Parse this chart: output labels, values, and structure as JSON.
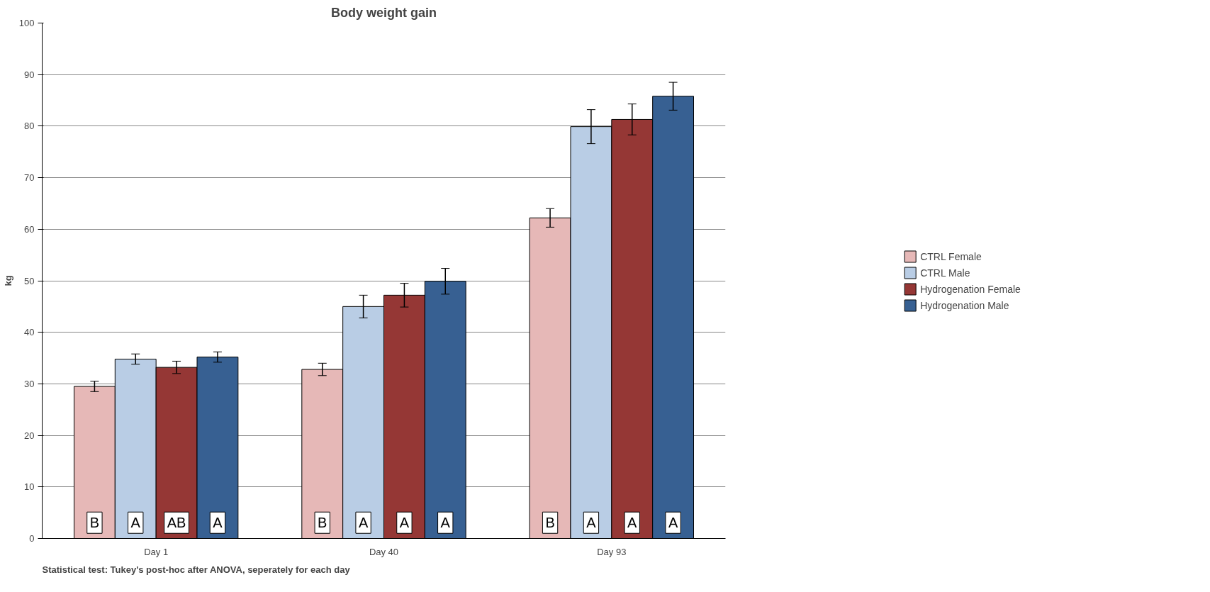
{
  "chart_data": {
    "type": "bar",
    "title": "Body weight gain",
    "ylabel": "kg",
    "categories": [
      "Day 1",
      "Day 40",
      "Day 93"
    ],
    "series": [
      {
        "name": "CTRL Female",
        "color": "#e6b8b7",
        "values": [
          29.5,
          32.8,
          62.2
        ],
        "errors": [
          1,
          1.2,
          1.8
        ],
        "value_labels": [
          "B",
          "B",
          "B"
        ]
      },
      {
        "name": "CTRL Male",
        "color": "#b9cde5",
        "values": [
          34.8,
          45,
          79.9
        ],
        "errors": [
          1,
          2.2,
          3.3
        ],
        "value_labels": [
          "A",
          "A",
          "A"
        ]
      },
      {
        "name": "Hydrogenation Female",
        "color": "#953735",
        "values": [
          33.2,
          47.2,
          81.3
        ],
        "errors": [
          1.2,
          2.3,
          3
        ],
        "value_labels": [
          "AB",
          "A",
          "A"
        ]
      },
      {
        "name": "Hydrogenation Male",
        "color": "#376092",
        "values": [
          35.2,
          49.9,
          85.8
        ],
        "errors": [
          1,
          2.5,
          2.7
        ],
        "value_labels": [
          "A",
          "A",
          "A"
        ]
      }
    ],
    "ylim": [
      0,
      100
    ],
    "yticks": [
      0,
      10,
      20,
      30,
      40,
      50,
      60,
      70,
      80,
      90,
      100
    ],
    "grid": "y",
    "legend": "right",
    "annotations": [
      "Statistical test: Tukey's post-hoc after ANOVA, seperately for each day"
    ]
  }
}
